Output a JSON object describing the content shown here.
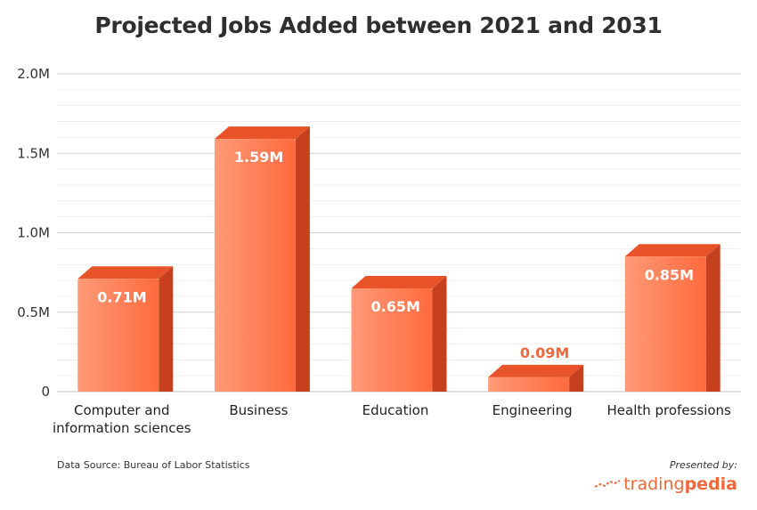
{
  "chart_data": {
    "type": "bar",
    "title": "Projected Jobs Added between 2021 and 2031",
    "categories": [
      "Computer and information sciences",
      "Business",
      "Education",
      "Engineering",
      "Health professions"
    ],
    "category_lines": [
      [
        "Computer and",
        "information sciences"
      ],
      [
        "Business"
      ],
      [
        "Education"
      ],
      [
        "Engineering"
      ],
      [
        "Health professions"
      ]
    ],
    "values": [
      0.71,
      1.59,
      0.65,
      0.09,
      0.85
    ],
    "value_labels": [
      "0.71M",
      "1.59M",
      "0.65M",
      "0.09M",
      "0.85M"
    ],
    "unit": "M",
    "ylim": [
      0,
      2.0
    ],
    "yticks": [
      0,
      0.5,
      1.0,
      1.5,
      2.0
    ],
    "ytick_labels": [
      "0",
      "0.5M",
      "1.0M",
      "1.5M",
      "2.0M"
    ],
    "grid": true,
    "xlabel": "",
    "ylabel": ""
  },
  "footer": {
    "source": "Data Source: Bureau of Labor Statistics",
    "presented_by": "Presented by:",
    "brand_part1": "trading",
    "brand_part2": "pedia"
  },
  "colors": {
    "bar_front_light": "#ff9a78",
    "bar_front_dark": "#ff6a3d",
    "bar_side": "#c7401d",
    "bar_top": "#e8532a",
    "grid": "#d9d9d9",
    "label_outside": "#f0673a"
  }
}
